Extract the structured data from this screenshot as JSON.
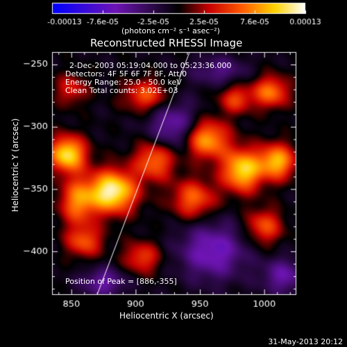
{
  "chart_data": {
    "type": "heatmap",
    "title": "Reconstructed RHESSI Image",
    "xlabel": "Heliocentric X (arcsec)",
    "ylabel": "Heliocentric Y (arcsec)",
    "xlim": [
      835,
      1025
    ],
    "ylim": [
      -435,
      -240
    ],
    "x_ticks": [
      850,
      900,
      950,
      1000
    ],
    "y_ticks": [
      -250,
      -300,
      -350,
      -400
    ],
    "colorbar": {
      "ticks": [
        "-0.00013",
        "-7.6e-05",
        "-2.5e-05",
        "2.5e-05",
        "7.6e-05",
        "0.00013"
      ],
      "range": [
        -0.00013,
        0.00013
      ],
      "units_label": "(photons cm⁻² s⁻¹ asec⁻²)"
    },
    "annotations": [
      "2-Dec-2003 05:19:04.000 to 05:23:36.000",
      "Detectors: 4F 5F 6F 7F 8F, Att/0",
      "Energy Range: 25.0 - 50.0 keV",
      "Clean     Total counts: 3.02E+03"
    ],
    "peak_label": "Position of Peak = [886,-355]",
    "peak": [
      886,
      -355
    ],
    "limb_line": [
      [
        870,
        -435
      ],
      [
        942,
        -240
      ]
    ],
    "sources": [
      {
        "x": 882,
        "y": -352,
        "amp": 1.0,
        "sx": 13,
        "sy": 12
      },
      {
        "x": 847,
        "y": -322,
        "amp": 0.9,
        "sx": 10,
        "sy": 10
      },
      {
        "x": 855,
        "y": -360,
        "amp": 0.6,
        "sx": 10,
        "sy": 13
      },
      {
        "x": 860,
        "y": -392,
        "amp": 0.5,
        "sx": 10,
        "sy": 9
      },
      {
        "x": 915,
        "y": -327,
        "amp": 0.6,
        "sx": 11,
        "sy": 11
      },
      {
        "x": 908,
        "y": -275,
        "amp": 0.5,
        "sx": 12,
        "sy": 9
      },
      {
        "x": 905,
        "y": -405,
        "amp": 0.45,
        "sx": 10,
        "sy": 9
      },
      {
        "x": 955,
        "y": -310,
        "amp": 0.75,
        "sx": 12,
        "sy": 11
      },
      {
        "x": 945,
        "y": -358,
        "amp": 0.55,
        "sx": 12,
        "sy": 11
      },
      {
        "x": 983,
        "y": -335,
        "amp": 0.85,
        "sx": 11,
        "sy": 12
      },
      {
        "x": 1010,
        "y": -328,
        "amp": 0.75,
        "sx": 10,
        "sy": 10
      },
      {
        "x": 1005,
        "y": -272,
        "amp": 0.6,
        "sx": 10,
        "sy": 9
      },
      {
        "x": 978,
        "y": -278,
        "amp": 0.45,
        "sx": 9,
        "sy": 8
      },
      {
        "x": 1000,
        "y": -380,
        "amp": 0.5,
        "sx": 10,
        "sy": 10
      },
      {
        "x": 850,
        "y": -270,
        "amp": 0.35,
        "sx": 9,
        "sy": 9
      },
      {
        "x": 930,
        "y": -300,
        "amp": -0.45,
        "sx": 14,
        "sy": 14
      },
      {
        "x": 960,
        "y": -400,
        "amp": -0.5,
        "sx": 18,
        "sy": 16
      },
      {
        "x": 875,
        "y": -425,
        "amp": -0.4,
        "sx": 12,
        "sy": 8
      },
      {
        "x": 1015,
        "y": -420,
        "amp": -0.4,
        "sx": 12,
        "sy": 10
      },
      {
        "x": 965,
        "y": -255,
        "amp": -0.3,
        "sx": 15,
        "sy": 8
      }
    ]
  },
  "footer_timestamp": "31-May-2013 20:12"
}
